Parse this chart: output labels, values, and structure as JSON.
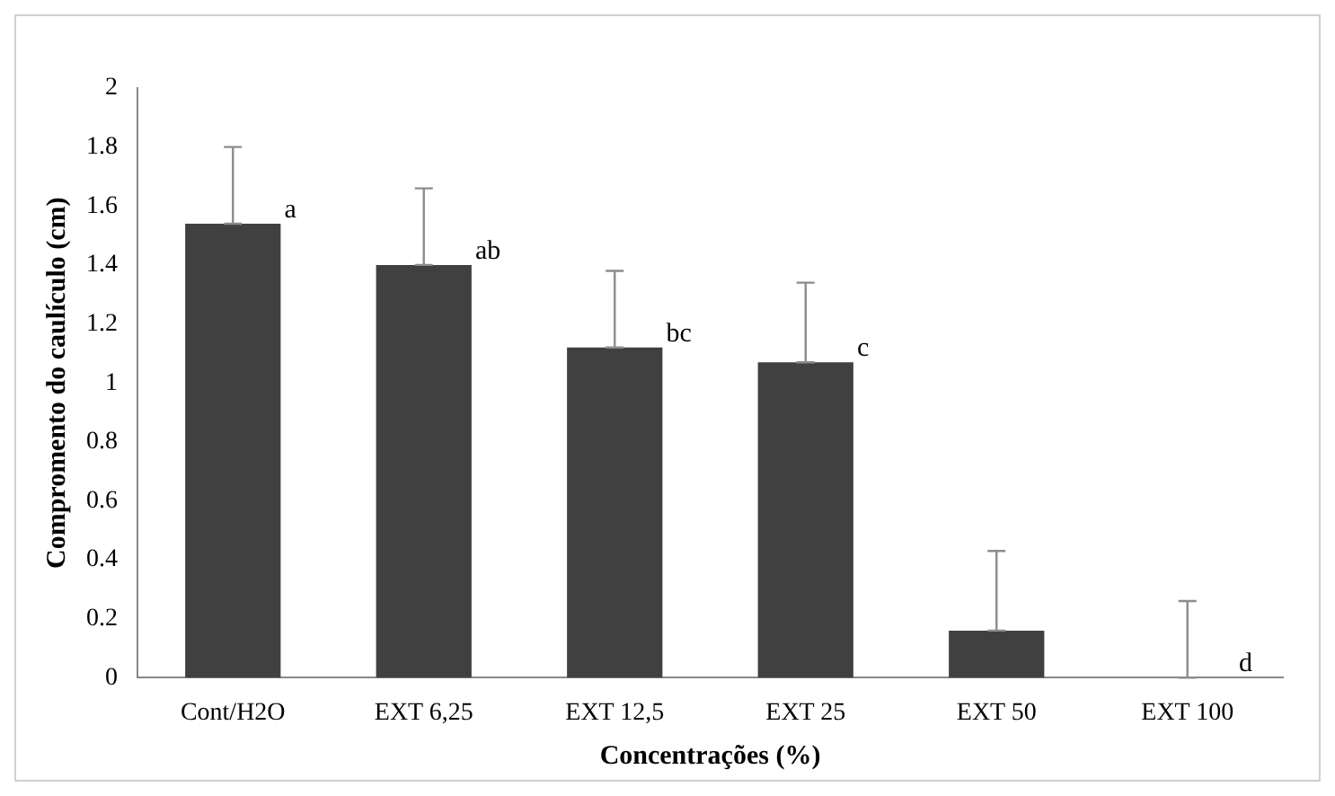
{
  "chart_data": {
    "type": "bar",
    "xlabel": "Concentrações (%)",
    "ylabel": "Compromento do caulículo (cm)",
    "categories": [
      "Cont/H2O",
      "EXT 6,25",
      "EXT 12,5",
      "EXT 25",
      "EXT 50",
      "EXT 100"
    ],
    "values": [
      1.54,
      1.4,
      1.12,
      1.07,
      0.16,
      0
    ],
    "errors": [
      [
        1.54,
        1.8
      ],
      [
        1.4,
        1.66
      ],
      [
        1.12,
        1.38
      ],
      [
        1.07,
        1.34
      ],
      [
        0.16,
        0.43
      ],
      [
        0,
        0.26
      ]
    ],
    "color": "#404040",
    "ylim": [
      0,
      2
    ],
    "yticks": [
      0,
      {
        "value": 0.2,
        "label": "0.2"
      },
      {
        "value": 0.4,
        "label": "0.4"
      },
      {
        "value": 0.6,
        "label": "0.6"
      },
      {
        "value": 0.8,
        "label": "0.8"
      },
      1,
      {
        "value": 1.2,
        "label": "1.2"
      },
      {
        "value": 1.4,
        "label": "1.4"
      },
      {
        "value": 1.6,
        "label": "1.6"
      },
      {
        "value": 1.8,
        "label": "1.8"
      },
      2
    ],
    "grid": false,
    "legend": false,
    "annotations": [
      {
        "text": "a",
        "x": "Cont/H2O",
        "y": 1.54
      },
      {
        "text": "ab",
        "x": "EXT 6,25",
        "y": 1.4
      },
      {
        "text": "bc",
        "x": "EXT 12,5",
        "y": 1.12
      },
      {
        "text": "c",
        "x": "EXT 25",
        "y": 1.07
      },
      {
        "text": "d",
        "x": "EXT 100",
        "y": 0
      }
    ]
  }
}
